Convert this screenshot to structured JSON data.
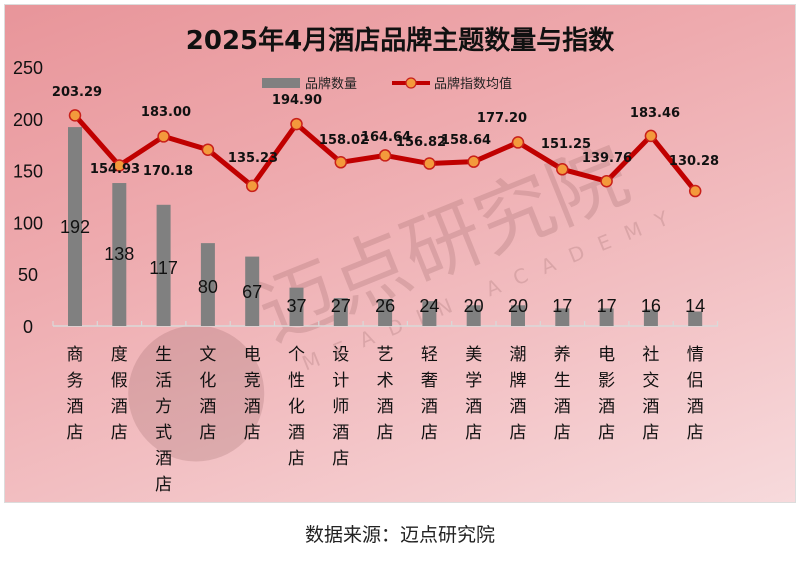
{
  "title": "2025年4月酒店品牌主题数量与指数",
  "source": "数据来源：迈点研究院",
  "watermark": {
    "cn": "迈点研究院",
    "en": "MEADIN ACADEMY"
  },
  "legend": [
    {
      "label": "品牌数量",
      "type": "bar",
      "color": "#808080"
    },
    {
      "label": "品牌指数均值",
      "type": "line",
      "color": "#c00000",
      "marker": "#f39a3c"
    }
  ],
  "colors": {
    "bar": "#808080",
    "line": "#c00000",
    "marker_fill": "#f39a3c",
    "bg_start": "#e8959a",
    "bg_end": "#f7dadc"
  },
  "chart_data": {
    "type": "bar",
    "title": "2025年4月酒店品牌主题数量与指数",
    "xlabel": "",
    "ylabel": "",
    "ylim": [
      0,
      250
    ],
    "yticks": [
      0,
      50,
      100,
      150,
      200,
      250
    ],
    "grid": false,
    "legend_position": "top",
    "categories": [
      "商务酒店",
      "度假酒店",
      "生活方式酒店",
      "文化酒店",
      "电竞酒店",
      "个性化酒店",
      "设计师酒店",
      "艺术酒店",
      "轻奢酒店",
      "美学酒店",
      "潮牌酒店",
      "养生酒店",
      "电影酒店",
      "社交酒店",
      "情侣酒店"
    ],
    "series": [
      {
        "name": "品牌数量",
        "type": "bar",
        "values": [
          192,
          138,
          117,
          80,
          67,
          37,
          27,
          26,
          24,
          20,
          20,
          17,
          17,
          16,
          14
        ]
      },
      {
        "name": "品牌指数均值",
        "type": "line",
        "values": [
          203.29,
          154.93,
          183.0,
          170.18,
          135.23,
          194.9,
          158.02,
          164.64,
          156.82,
          158.64,
          177.2,
          151.25,
          139.76,
          183.46,
          130.28
        ]
      }
    ],
    "line_labels": [
      "203.29",
      "154.93",
      "183.00",
      "170.18",
      "135.23",
      "194.90",
      "158.02",
      "164.64",
      "156.82",
      "158.64",
      "177.20",
      "151.25",
      "139.76",
      "183.46",
      "130.28"
    ]
  }
}
